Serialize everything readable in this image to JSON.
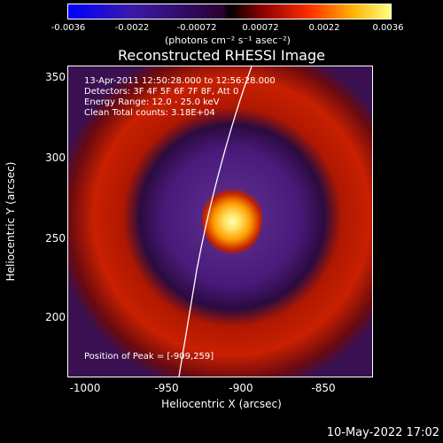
{
  "colorbar": {
    "ticks": [
      "-0.0036",
      "-0.0022",
      "-0.00072",
      "0.00072",
      "0.0022",
      "0.0036"
    ],
    "units": "(photons cm⁻² s⁻¹ asec⁻²)"
  },
  "title": "Reconstructed RHESSI Image",
  "info": {
    "time": "13-Apr-2011 12:50:28.000 to 12:56:28.000",
    "detectors": "Detectors: 3F 4F 5F 6F 7F 8F, Att 0",
    "energy": "Energy Range: 12.0 - 25.0 keV",
    "clean": "Clean    Total counts: 3.18E+04",
    "peak": "Position of Peak = [-909,259]"
  },
  "axes": {
    "xlabel": "Heliocentric X (arcsec)",
    "ylabel": "Heliocentric Y (arcsec)",
    "xticks": [
      "-1000",
      "-950",
      "-900",
      "-850"
    ],
    "yticks": [
      "350",
      "300",
      "250",
      "200"
    ]
  },
  "footer": "10-May-2022 17:02",
  "colors": {
    "source_core": "#ffff80",
    "source_mid": "#ff9a00",
    "ring_negative": "#4a1a7a",
    "ring_positive": "#c82000",
    "limb": "#ffffff"
  }
}
